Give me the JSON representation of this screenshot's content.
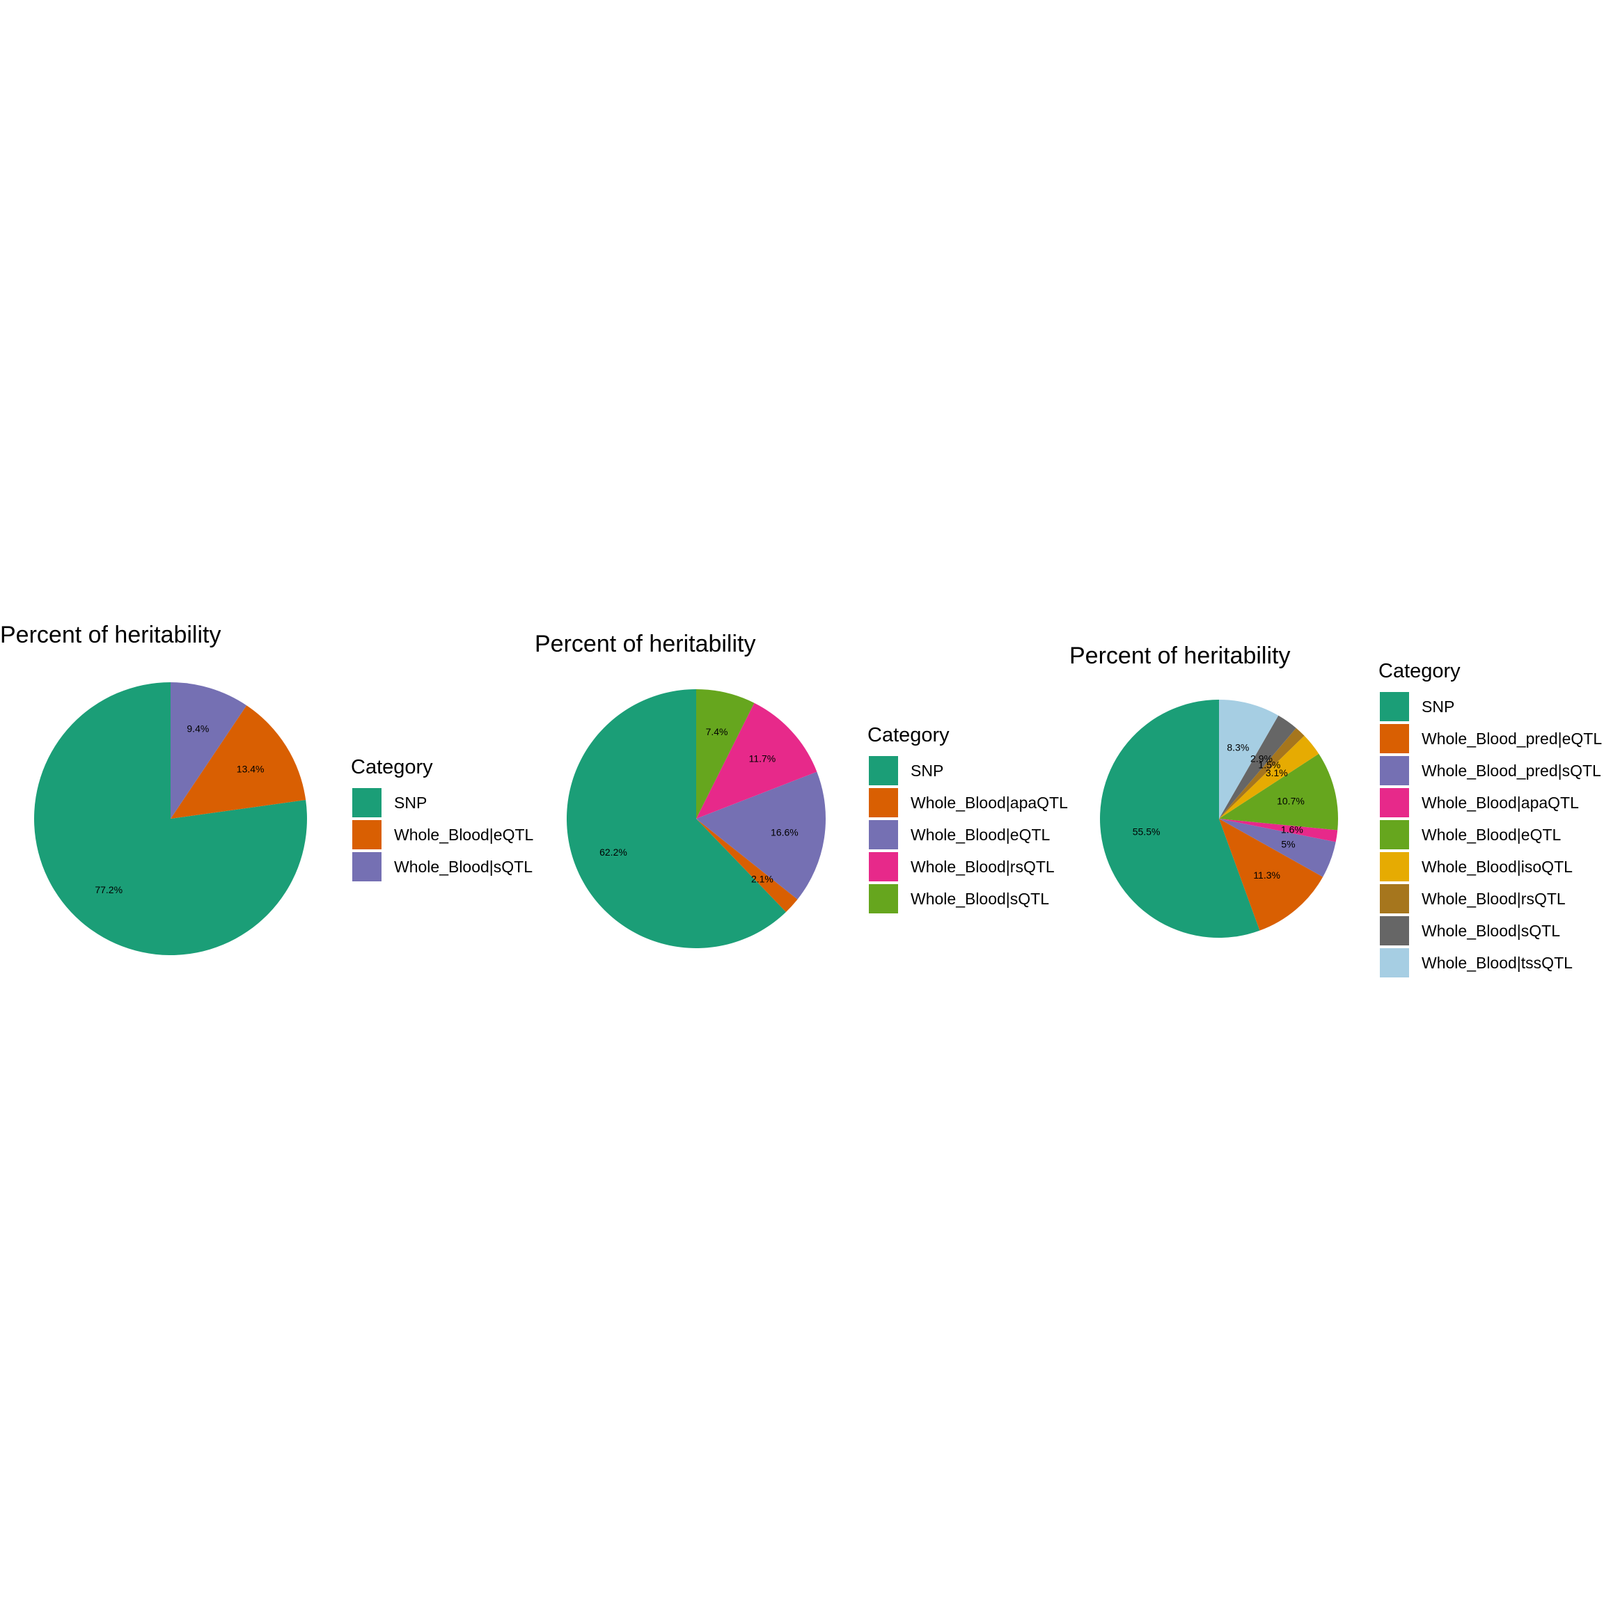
{
  "chart_data": [
    {
      "type": "pie",
      "title": "Percent of heritability",
      "legend_title": "Category",
      "legend_position": "right",
      "start": "12 o'clock",
      "direction": "counter-clockwise",
      "categories": [
        "SNP",
        "Whole_Blood|eQTL",
        "Whole_Blood|sQTL"
      ],
      "values": [
        77.2,
        13.4,
        9.4
      ],
      "labels": [
        "77.2%",
        "13.4%",
        "9.4%"
      ],
      "colors": [
        "#1b9e77",
        "#d95f02",
        "#7570b3"
      ]
    },
    {
      "type": "pie",
      "title": "Percent of heritability",
      "legend_title": "Category",
      "legend_position": "right",
      "start": "12 o'clock",
      "direction": "counter-clockwise",
      "categories": [
        "SNP",
        "Whole_Blood|apaQTL",
        "Whole_Blood|eQTL",
        "Whole_Blood|rsQTL",
        "Whole_Blood|sQTL"
      ],
      "values": [
        62.2,
        2.1,
        16.6,
        11.7,
        7.4
      ],
      "labels": [
        "62.2%",
        "2.1%",
        "16.6%",
        "11.7%",
        "7.4%"
      ],
      "colors": [
        "#1b9e77",
        "#d95f02",
        "#7570b3",
        "#e7298a",
        "#66a61e"
      ]
    },
    {
      "type": "pie",
      "title": "Percent of heritability",
      "legend_title": "Category",
      "legend_position": "right",
      "start": "12 o'clock",
      "direction": "counter-clockwise",
      "categories": [
        "SNP",
        "Whole_Blood_pred|eQTL",
        "Whole_Blood_pred|sQTL",
        "Whole_Blood|apaQTL",
        "Whole_Blood|eQTL",
        "Whole_Blood|isoQTL",
        "Whole_Blood|rsQTL",
        "Whole_Blood|sQTL",
        "Whole_Blood|tssQTL"
      ],
      "values": [
        55.5,
        11.3,
        5.0,
        1.6,
        10.7,
        3.1,
        1.5,
        2.9,
        8.3
      ],
      "labels": [
        "55.5%",
        "11.3%",
        "5%",
        "1.6%",
        "10.7%",
        "3.1%",
        "1.5%",
        "2.9%",
        "8.3%"
      ],
      "colors": [
        "#1b9e77",
        "#d95f02",
        "#7570b3",
        "#e7298a",
        "#66a61e",
        "#e6ab02",
        "#a6761d",
        "#666666",
        "#a6cee3"
      ]
    }
  ]
}
